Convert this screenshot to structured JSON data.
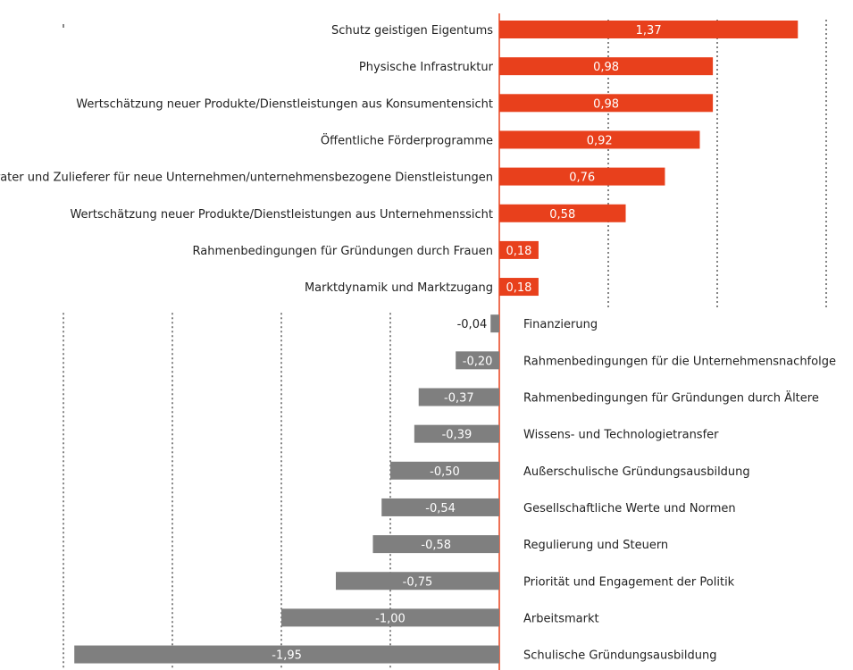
{
  "chart_data": {
    "type": "bar",
    "orientation": "horizontal",
    "grid": "dotted vertical",
    "colors": {
      "positive": "#e8401c",
      "negative": "#7f7f7f",
      "grid": "#333333",
      "zero_line": "#e8401c"
    },
    "xlim": [
      -2.0,
      1.5
    ],
    "categories": [
      "Schutz geistigen Eigentums",
      "Physische Infrastruktur",
      "Wertschätzung neuer Produkte/Dienstleistungen aus Konsumentensicht",
      "Öffentliche Förderprogramme",
      "Berater und Zulieferer für neue Unternehmen/unternehmensbezogene Dienstleistungen",
      "Wertschätzung neuer Produkte/Dienstleistungen aus Unternehmenssicht",
      "Rahmenbedingungen für Gründungen durch Frauen",
      "Marktdynamik und Marktzugang",
      "Finanzierung",
      "Rahmenbedingungen für die Unternehmensnachfolge",
      "Rahmenbedingungen für Gründungen durch Ältere",
      "Wissens- und Technologietransfer",
      "Außerschulische Gründungsausbildung",
      "Gesellschaftliche Werte und Normen",
      "Regulierung und Steuern",
      "Priorität und Engagement der Politik",
      "Arbeitsmarkt",
      "Schulische Gründungsausbildung"
    ],
    "values": [
      1.37,
      0.98,
      0.98,
      0.92,
      0.76,
      0.58,
      0.18,
      0.18,
      -0.04,
      -0.2,
      -0.37,
      -0.39,
      -0.5,
      -0.54,
      -0.58,
      -0.75,
      -1.0,
      -1.95
    ],
    "value_labels": [
      "1,37",
      "0,98",
      "0,98",
      "0,92",
      "0,76",
      "0,58",
      "0,18",
      "0,18",
      "-0,04",
      "-0,20",
      "-0,37",
      "-0,39",
      "-0,50",
      "-0,54",
      "-0,58",
      "-0,75",
      "-1,00",
      "-1,95"
    ]
  }
}
